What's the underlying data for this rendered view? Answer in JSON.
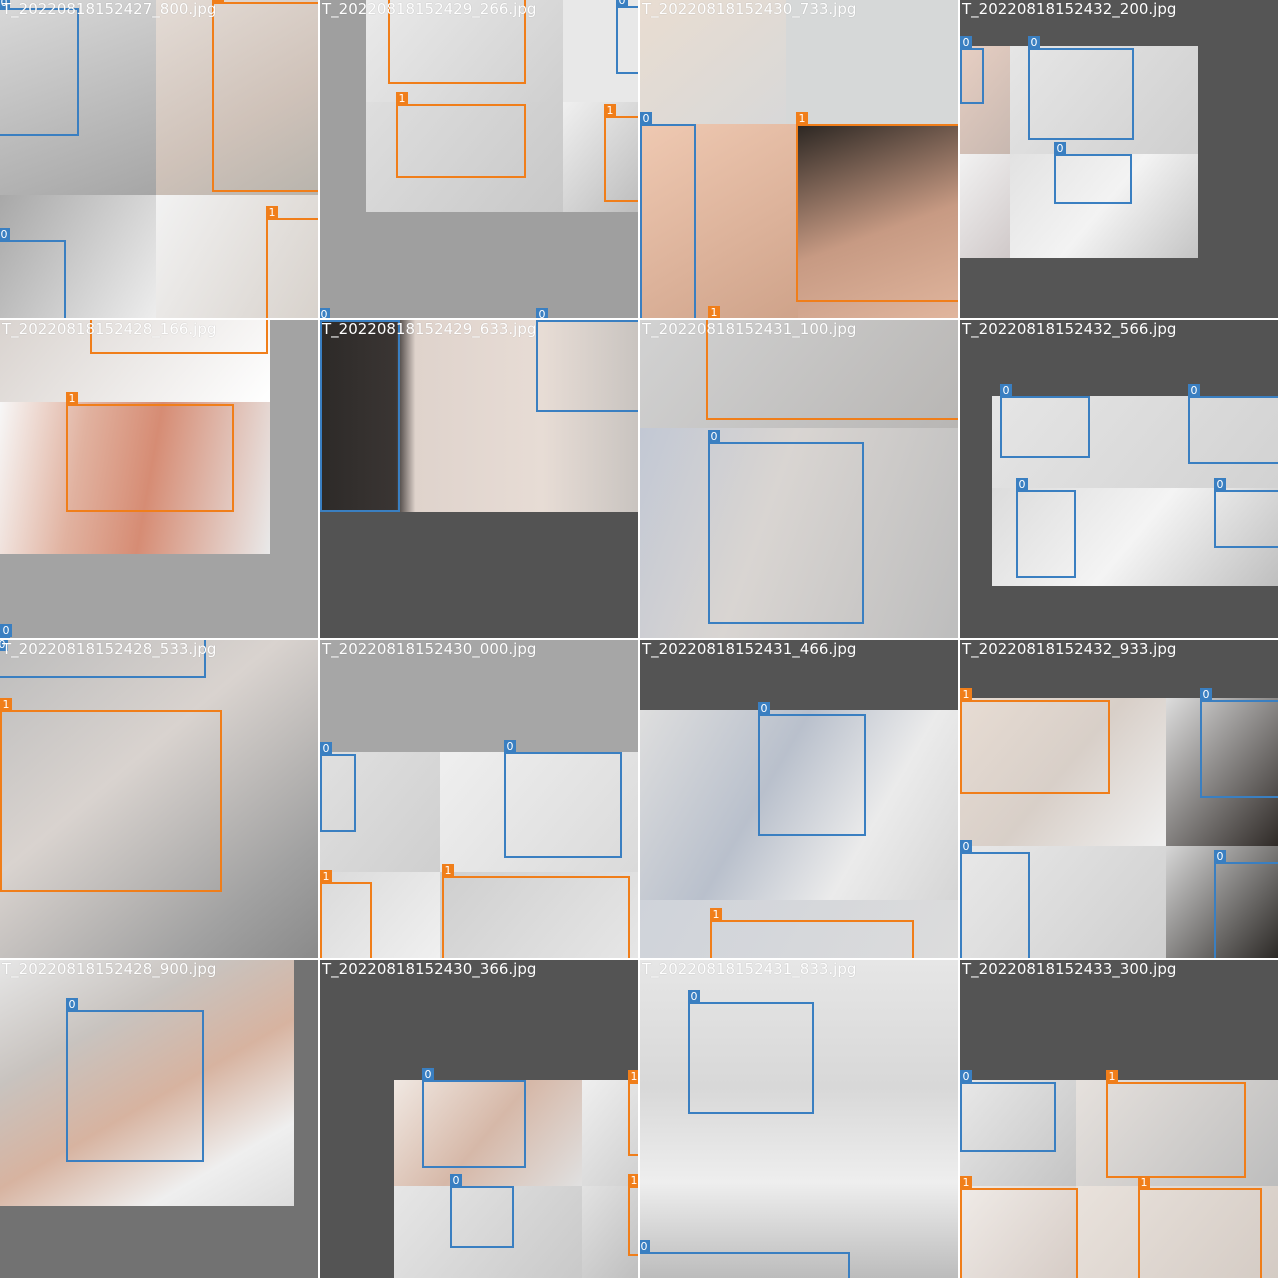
{
  "colors": {
    "class0": "#3a7fc1",
    "class1": "#f07e1a",
    "background": "#727272"
  },
  "tiles": [
    {
      "file": "T_20220818152427_800.jpg",
      "boxes": [
        "0",
        "1",
        "0",
        "1"
      ]
    },
    {
      "file": "T_20220818152429_266.jpg",
      "boxes": [
        "0",
        "1",
        "1",
        "0",
        "0"
      ]
    },
    {
      "file": "T_20220818152430_733.jpg",
      "boxes": [
        "0",
        "1",
        "1"
      ]
    },
    {
      "file": "T_20220818152432_200.jpg",
      "boxes": [
        "0",
        "0",
        "0"
      ]
    },
    {
      "file": "T_20220818152428_166.jpg",
      "boxes": [
        "1",
        "1",
        "0"
      ]
    },
    {
      "file": "T_20220818152429_633.jpg",
      "boxes": [
        "0",
        "0"
      ]
    },
    {
      "file": "T_20220818152431_100.jpg",
      "boxes": [
        "0"
      ]
    },
    {
      "file": "T_20220818152432_566.jpg",
      "boxes": [
        "0",
        "0",
        "0",
        "0"
      ]
    },
    {
      "file": "T_20220818152428_533.jpg",
      "boxes": [
        "0",
        "1"
      ]
    },
    {
      "file": "T_20220818152430_000.jpg",
      "boxes": [
        "0",
        "0",
        "1",
        "1"
      ]
    },
    {
      "file": "T_20220818152431_466.jpg",
      "boxes": [
        "0",
        "1"
      ]
    },
    {
      "file": "T_20220818152432_933.jpg",
      "boxes": [
        "1",
        "0",
        "0",
        "0"
      ]
    },
    {
      "file": "T_20220818152428_900.jpg",
      "boxes": [
        "0"
      ]
    },
    {
      "file": "T_20220818152430_366.jpg",
      "boxes": [
        "0",
        "1",
        "0",
        "1"
      ]
    },
    {
      "file": "T_20220818152431_833.jpg",
      "boxes": [
        "0",
        "0"
      ]
    },
    {
      "file": "T_20220818152433_300.jpg",
      "boxes": [
        "0",
        "1",
        "1",
        "1"
      ]
    }
  ]
}
